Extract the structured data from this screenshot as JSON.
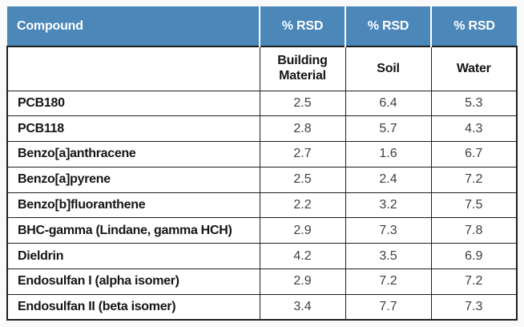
{
  "table": {
    "header": {
      "compound_label": "Compound",
      "rsd_labels": [
        "% RSD",
        "% RSD",
        "% RSD"
      ]
    },
    "subheader": {
      "compound_blank": "",
      "columns": [
        "Building Material",
        "Soil",
        "Water"
      ]
    },
    "rows": [
      {
        "compound": "PCB180",
        "values": [
          "2.5",
          "6.4",
          "5.3"
        ]
      },
      {
        "compound": "PCB118",
        "values": [
          "2.8",
          "5.7",
          "4.3"
        ]
      },
      {
        "compound": "Benzo[a]anthracene",
        "values": [
          "2.7",
          "1.6",
          "6.7"
        ]
      },
      {
        "compound": "Benzo[a]pyrene",
        "values": [
          "2.5",
          "2.4",
          "7.2"
        ]
      },
      {
        "compound": "Benzo[b]fluoranthene",
        "values": [
          "2.2",
          "3.2",
          "7.5"
        ]
      },
      {
        "compound": "BHC-gamma (Lindane, gamma HCH)",
        "values": [
          "2.9",
          "7.3",
          "7.8"
        ]
      },
      {
        "compound": "Dieldrin",
        "values": [
          "4.2",
          "3.5",
          "6.9"
        ]
      },
      {
        "compound": "Endosulfan I (alpha isomer)",
        "values": [
          "2.9",
          "7.2",
          "7.2"
        ]
      },
      {
        "compound": "Endosulfan II (beta isomer)",
        "values": [
          "3.4",
          "7.7",
          "7.3"
        ]
      }
    ]
  },
  "colors": {
    "header_bg": "#4c87b9",
    "header_text": "#ffffff",
    "grid_border": "#1e1e1e",
    "compound_text": "#151515",
    "value_text": "#3f3f3f",
    "page_bg": "#fafafa"
  }
}
